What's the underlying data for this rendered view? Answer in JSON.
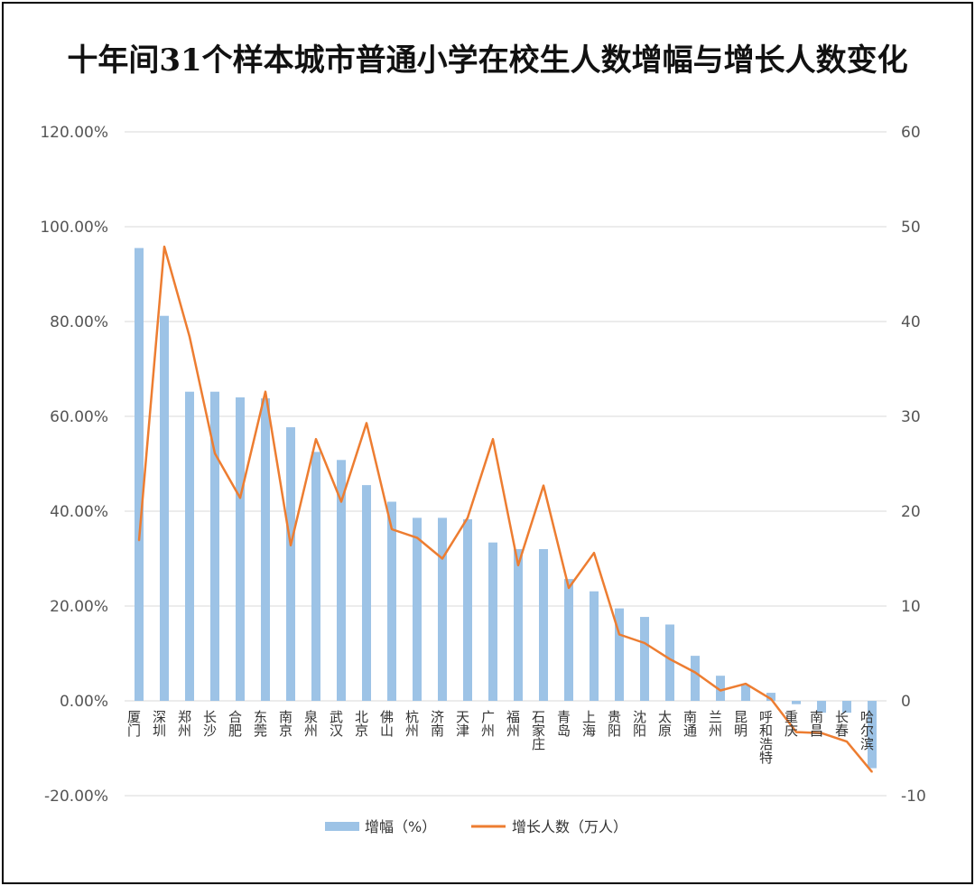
{
  "chart_data": {
    "type": "bar",
    "title": "十年间31个样本城市普通小学在校生人数增幅与增长人数变化",
    "categories": [
      "厦门",
      "深圳",
      "郑州",
      "长沙",
      "合肥",
      "东莞",
      "南京",
      "泉州",
      "武汉",
      "北京",
      "佛山",
      "杭州",
      "济南",
      "天津",
      "广州",
      "福州",
      "石家庄",
      "青岛",
      "上海",
      "贵阳",
      "沈阳",
      "太原",
      "南通",
      "兰州",
      "昆明",
      "呼和浩特",
      "重庆",
      "南昌",
      "长春",
      "哈尔滨"
    ],
    "series": [
      {
        "name": "增幅（%）",
        "type": "bar",
        "axis": "left",
        "color": "#9dc3e6",
        "values": [
          95.5,
          81.2,
          65.2,
          65.2,
          64.0,
          63.8,
          57.7,
          52.5,
          50.8,
          45.5,
          42.0,
          38.6,
          38.6,
          38.3,
          33.4,
          32.0,
          32.0,
          25.7,
          23.1,
          19.5,
          17.7,
          16.1,
          9.5,
          5.3,
          3.3,
          1.7,
          -0.7,
          -2.5,
          -2.5,
          -14.2
        ]
      },
      {
        "name": "增长人数（万人）",
        "type": "line",
        "axis": "right",
        "color": "#ed7d31",
        "values": [
          16.9,
          47.9,
          38.4,
          26.1,
          21.4,
          32.6,
          16.4,
          27.6,
          21.0,
          29.3,
          18.1,
          17.2,
          15.0,
          19.3,
          27.6,
          14.3,
          22.7,
          11.9,
          15.6,
          7.0,
          6.1,
          4.4,
          3.0,
          1.1,
          1.8,
          0.2,
          -3.3,
          -3.4,
          -4.3,
          -7.5
        ]
      }
    ],
    "y_left": {
      "ticks": [
        "120.00%",
        "100.00%",
        "80.00%",
        "60.00%",
        "40.00%",
        "20.00%",
        "0.00%",
        "-20.00%"
      ],
      "ylim": [
        -20,
        120
      ]
    },
    "y_right": {
      "ticks": [
        "60",
        "50",
        "40",
        "30",
        "20",
        "10",
        "0",
        "-10"
      ],
      "ylim": [
        -10,
        60
      ]
    },
    "grid": true,
    "legend_position": "bottom"
  }
}
